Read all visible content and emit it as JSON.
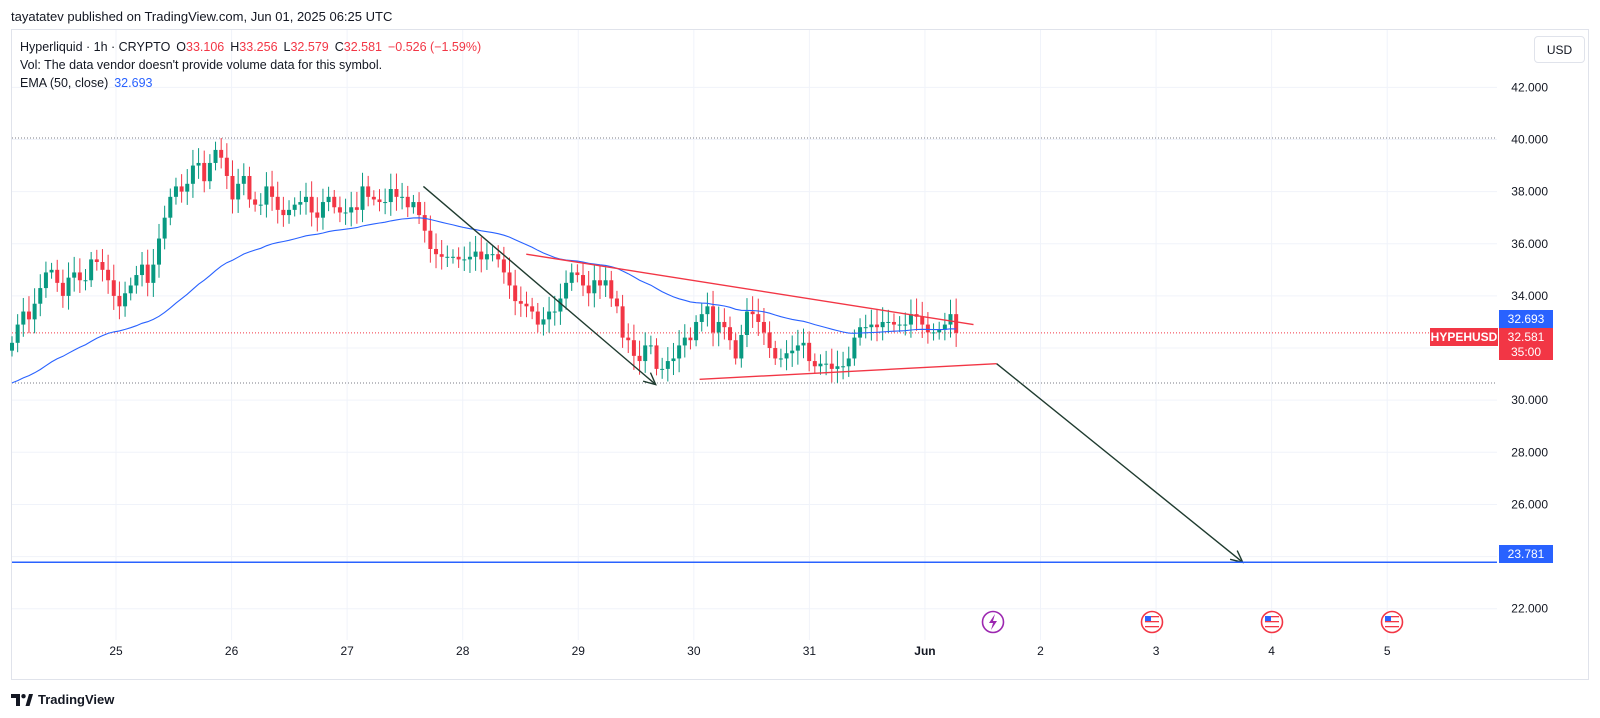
{
  "header": {
    "published_line": "tayatatev published on TradingView.com, Jun 01, 2025 06:25 UTC"
  },
  "legend": {
    "symbol_line": "Hyperliquid · 1h · CRYPTO",
    "o_label": "O",
    "o_value": "33.106",
    "h_label": "H",
    "h_value": "33.256",
    "l_label": "L",
    "l_value": "32.579",
    "c_label": "C",
    "c_value": "32.581",
    "change": "−0.526 (−1.59%)",
    "vol_line": "Vol: The data vendor doesn't provide volume data for this symbol.",
    "ema_label": "EMA (50, close)",
    "ema_value": "32.693"
  },
  "currency_button": "USD",
  "price_tags": {
    "ema": "32.693",
    "symbol_name": "HYPEHUSD",
    "last_price": "32.581",
    "countdown": "35:00",
    "target": "23.781"
  },
  "footer": {
    "logo_text": "TradingView"
  },
  "colors": {
    "up": "#089981",
    "down": "#f23645",
    "ema": "#2962ff",
    "trend": "#f23645",
    "target_line": "#2962ff",
    "arrow": "#1f3b2f",
    "grid": "#f0f3fa",
    "event_purple": "#9c27b0",
    "event_red": "#f23645"
  },
  "icons": {
    "event_1": "lightning-bolt-icon",
    "event_2": "us-flag-icon",
    "event_3": "us-flag-icon",
    "event_4": "us-flag-icon",
    "logo": "tradingview-logo-icon"
  },
  "chart_data": {
    "type": "candlestick",
    "y_axis": {
      "range": [
        20.8,
        44.2
      ],
      "ticks": [
        "22.000",
        "24.000",
        "26.000",
        "28.000",
        "30.000",
        "32.000",
        "34.000",
        "36.000",
        "38.000",
        "40.000",
        "42.000"
      ]
    },
    "x_axis": {
      "ticks": [
        "25",
        "26",
        "27",
        "28",
        "29",
        "30",
        "31",
        "Jun",
        "2",
        "3",
        "4",
        "5"
      ]
    },
    "time_range": [
      24.1,
      5.95
    ],
    "close_series": [
      32.2,
      32.9,
      33.4,
      33.1,
      33.7,
      34.3,
      34.9,
      35.0,
      34.5,
      34.0,
      34.7,
      34.9,
      34.6,
      34.6,
      35.4,
      35.3,
      35.0,
      34.6,
      34.0,
      33.6,
      34.1,
      34.4,
      34.8,
      35.2,
      34.5,
      35.2,
      36.2,
      37.0,
      37.8,
      38.2,
      38.0,
      38.3,
      39.0,
      39.1,
      38.4,
      39.1,
      39.6,
      39.3,
      38.6,
      37.7,
      38.3,
      38.6,
      37.7,
      37.5,
      37.5,
      38.2,
      37.8,
      37.3,
      37.1,
      37.3,
      37.5,
      37.6,
      37.8,
      37.2,
      37.0,
      37.6,
      37.8,
      37.4,
      37.2,
      37.2,
      37.4,
      37.3,
      38.2,
      37.8,
      37.7,
      37.6,
      37.6,
      38.1,
      37.8,
      37.8,
      37.4,
      37.6,
      37.1,
      36.5,
      35.8,
      35.6,
      35.5,
      35.5,
      35.5,
      35.4,
      35.4,
      35.5,
      35.7,
      35.4,
      35.6,
      35.6,
      35.4,
      34.9,
      34.4,
      33.8,
      33.7,
      33.6,
      33.4,
      32.9,
      33.1,
      33.4,
      33.4,
      33.9,
      34.5,
      34.9,
      34.8,
      34.4,
      34.1,
      34.6,
      34.4,
      34.6,
      33.9,
      33.6,
      32.4,
      32.3,
      31.7,
      31.5,
      32.1,
      32.1,
      31.2,
      31.2,
      31.5,
      31.6,
      32.1,
      32.4,
      32.3,
      33.0,
      33.3,
      33.6,
      32.6,
      33.0,
      32.8,
      32.3,
      31.6,
      32.5,
      33.4,
      33.3,
      33.0,
      32.6,
      32.0,
      31.6,
      31.6,
      31.8,
      31.9,
      32.1,
      32.2,
      31.5,
      31.3,
      31.4,
      31.4,
      31.2,
      31.3,
      31.3,
      31.6,
      32.4,
      32.8,
      32.8,
      32.9,
      32.8,
      33.0,
      33.0,
      32.9,
      32.9,
      32.9,
      33.3,
      33.2,
      32.9,
      32.6,
      32.6,
      32.7,
      32.9,
      33.3,
      32.581
    ],
    "ema": {
      "name": "EMA (50, close)",
      "last": 32.693
    },
    "annotations": [
      {
        "type": "trendline",
        "from": [
          "27.66",
          38.2
        ],
        "to": [
          "29.67",
          30.6
        ]
      },
      {
        "type": "trendline",
        "from": [
          "28.55",
          35.6
        ],
        "to": [
          "1.42",
          32.9
        ]
      },
      {
        "type": "trendline",
        "from": [
          "30.05",
          30.8
        ],
        "to": [
          "1.62",
          31.4
        ]
      },
      {
        "type": "arrow",
        "from": [
          "1.62",
          31.4
        ],
        "to": [
          "3.75",
          23.78
        ]
      },
      {
        "type": "horizontal_line",
        "price": 23.781
      }
    ]
  }
}
